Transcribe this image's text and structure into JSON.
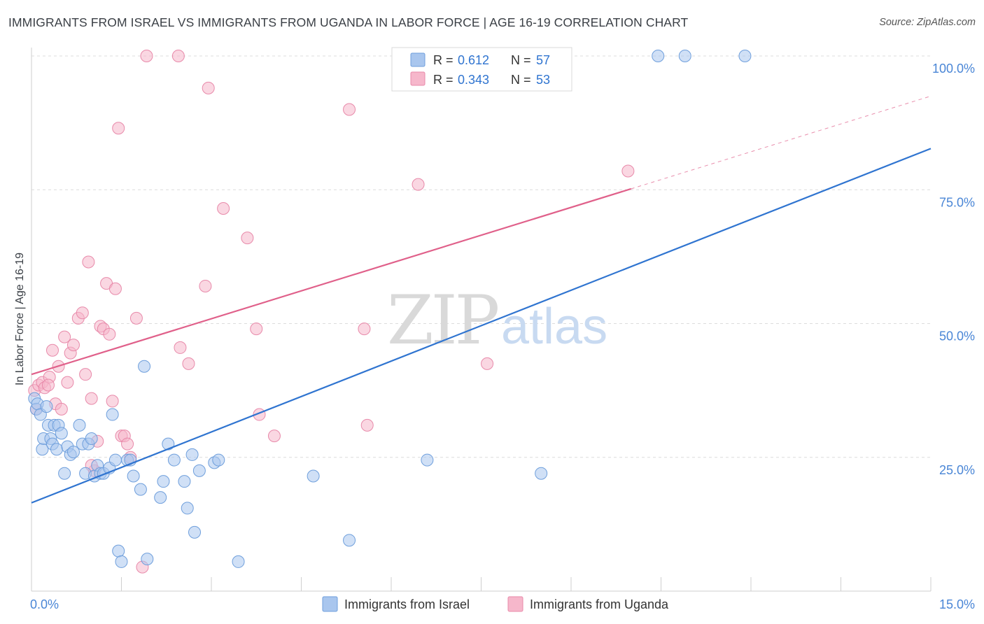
{
  "title": "IMMIGRANTS FROM ISRAEL VS IMMIGRANTS FROM UGANDA IN LABOR FORCE | AGE 16-19 CORRELATION CHART",
  "source": "Source: ZipAtlas.com",
  "watermark": {
    "part1": "ZIP",
    "part2": "atlas"
  },
  "colors": {
    "israel_fill": "#a9c6ee",
    "israel_stroke": "#6f9fdc",
    "israel_line": "#2f74d0",
    "uganda_fill": "#f6b7cb",
    "uganda_stroke": "#e88aaa",
    "uganda_line": "#e0608a",
    "axis_text": "#4a86d6",
    "grid": "#dcdcdc"
  },
  "legend": {
    "rows": [
      {
        "r_label": "R =",
        "r_value": "0.612",
        "n_label": "N =",
        "n_value": "57"
      },
      {
        "r_label": "R =",
        "r_value": "0.343",
        "n_label": "N =",
        "n_value": "53"
      }
    ],
    "bottom": [
      "Immigrants from Israel",
      "Immigrants from Uganda"
    ]
  },
  "chart_data": {
    "type": "scatter",
    "xlabel": "",
    "ylabel": "In Labor Force | Age 16-19",
    "xlim": [
      0,
      15
    ],
    "ylim": [
      0,
      100
    ],
    "x_tick_labels": [
      "0.0%",
      "15.0%"
    ],
    "y_tick_labels": [
      "100.0%",
      "75.0%",
      "50.0%",
      "25.0%"
    ],
    "y_tick_values": [
      100,
      75,
      50,
      25
    ],
    "grid": true,
    "series": [
      {
        "name": "Immigrants from Israel",
        "r": 0.612,
        "n": 57,
        "trend": {
          "x0": 0,
          "y0": 16.5,
          "x1": 15,
          "y1": 82.7,
          "dashed_from": null
        },
        "points": [
          [
            0.05,
            36
          ],
          [
            0.08,
            34
          ],
          [
            0.1,
            35
          ],
          [
            0.15,
            33
          ],
          [
            0.18,
            26.5
          ],
          [
            0.2,
            28.5
          ],
          [
            0.28,
            31
          ],
          [
            0.32,
            28.5
          ],
          [
            0.35,
            27.5
          ],
          [
            0.38,
            31
          ],
          [
            0.42,
            26.5
          ],
          [
            0.45,
            31
          ],
          [
            0.5,
            29.5
          ],
          [
            0.55,
            22
          ],
          [
            0.6,
            27
          ],
          [
            0.65,
            25.5
          ],
          [
            0.7,
            26
          ],
          [
            0.8,
            31
          ],
          [
            0.85,
            27.5
          ],
          [
            0.9,
            22
          ],
          [
            0.95,
            27.5
          ],
          [
            1.0,
            28.5
          ],
          [
            1.05,
            21.5
          ],
          [
            1.1,
            23.5
          ],
          [
            1.15,
            22
          ],
          [
            1.2,
            22
          ],
          [
            1.3,
            23
          ],
          [
            1.35,
            33
          ],
          [
            1.4,
            24.5
          ],
          [
            1.45,
            7.5
          ],
          [
            1.5,
            5.5
          ],
          [
            1.6,
            24.5
          ],
          [
            1.65,
            24.5
          ],
          [
            1.7,
            21.5
          ],
          [
            1.82,
            19
          ],
          [
            1.88,
            42
          ],
          [
            1.93,
            6
          ],
          [
            2.15,
            17.5
          ],
          [
            2.2,
            20.5
          ],
          [
            2.28,
            27.5
          ],
          [
            2.38,
            24.5
          ],
          [
            2.55,
            20.5
          ],
          [
            2.6,
            15.5
          ],
          [
            2.68,
            25.5
          ],
          [
            2.72,
            11
          ],
          [
            2.8,
            22.5
          ],
          [
            3.05,
            24
          ],
          [
            3.12,
            24.5
          ],
          [
            3.45,
            5.5
          ],
          [
            4.7,
            21.5
          ],
          [
            5.3,
            9.5
          ],
          [
            6.6,
            24.5
          ],
          [
            8.5,
            22
          ],
          [
            10.45,
            100
          ],
          [
            10.9,
            100
          ],
          [
            11.9,
            100
          ],
          [
            0.25,
            34.5
          ]
        ]
      },
      {
        "name": "Immigrants from Uganda",
        "r": 0.343,
        "n": 53,
        "trend": {
          "x0": 0,
          "y0": 40.5,
          "x1": 15,
          "y1": 92.5,
          "dashed_from": 10.0
        },
        "points": [
          [
            0.05,
            37.5
          ],
          [
            0.12,
            38.5
          ],
          [
            0.18,
            39
          ],
          [
            0.22,
            38
          ],
          [
            0.3,
            40
          ],
          [
            0.35,
            45
          ],
          [
            0.4,
            35
          ],
          [
            0.45,
            42
          ],
          [
            0.5,
            34
          ],
          [
            0.55,
            47.5
          ],
          [
            0.6,
            39
          ],
          [
            0.65,
            44.5
          ],
          [
            0.7,
            46
          ],
          [
            0.78,
            51
          ],
          [
            0.85,
            52
          ],
          [
            0.9,
            40.5
          ],
          [
            0.95,
            61.5
          ],
          [
            1.0,
            36
          ],
          [
            1.05,
            22.5
          ],
          [
            1.1,
            28
          ],
          [
            1.15,
            49.5
          ],
          [
            1.2,
            49
          ],
          [
            1.25,
            57.5
          ],
          [
            1.3,
            48
          ],
          [
            1.35,
            35.5
          ],
          [
            1.4,
            56.5
          ],
          [
            1.45,
            86.5
          ],
          [
            1.5,
            29
          ],
          [
            1.55,
            29
          ],
          [
            1.6,
            27.5
          ],
          [
            1.65,
            25
          ],
          [
            1.75,
            51
          ],
          [
            1.85,
            4.5
          ],
          [
            1.92,
            100
          ],
          [
            2.45,
            100
          ],
          [
            2.48,
            45.5
          ],
          [
            2.62,
            42.5
          ],
          [
            2.9,
            57
          ],
          [
            2.95,
            94
          ],
          [
            3.2,
            71.5
          ],
          [
            3.6,
            66
          ],
          [
            3.75,
            49
          ],
          [
            3.8,
            33
          ],
          [
            4.05,
            29
          ],
          [
            5.3,
            90
          ],
          [
            5.55,
            49
          ],
          [
            5.6,
            31
          ],
          [
            6.45,
            76
          ],
          [
            7.6,
            42.5
          ],
          [
            9.95,
            78.5
          ],
          [
            0.08,
            34
          ],
          [
            0.28,
            38.5
          ],
          [
            1.0,
            23.5
          ]
        ]
      }
    ]
  }
}
